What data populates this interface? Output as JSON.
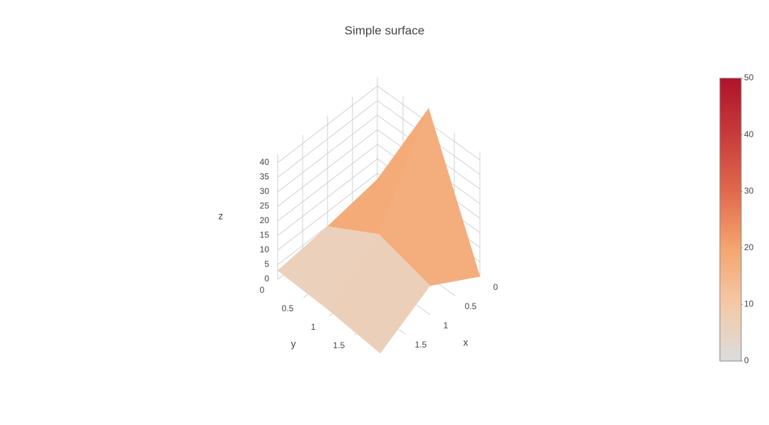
{
  "chart_data": {
    "type": "surface",
    "title": "Simple surface",
    "x": [
      0,
      1,
      2
    ],
    "y": [
      0,
      1,
      2
    ],
    "z": [
      [
        8,
        5,
        3
      ],
      [
        45,
        15,
        2
      ],
      [
        0,
        10,
        0
      ]
    ],
    "x_label": "x",
    "y_label": "y",
    "z_label": "z",
    "xlim": [
      0,
      2
    ],
    "ylim": [
      0,
      2
    ],
    "zlim": [
      0,
      43
    ],
    "xticks": [
      0,
      0.5,
      1,
      1.5
    ],
    "yticks": [
      0,
      0.5,
      1,
      1.5
    ],
    "zticks": [
      0,
      5,
      10,
      15,
      20,
      25,
      30,
      35,
      40
    ],
    "colorbar": {
      "lim": [
        0,
        50
      ],
      "ticks": [
        0,
        10,
        20,
        30,
        40,
        50
      ]
    },
    "colorscale": [
      "#dcdcdc",
      "#f4c9a8",
      "#f4a56e",
      "#e0694d",
      "#c73b3b",
      "#b0132a"
    ],
    "grid": true
  }
}
